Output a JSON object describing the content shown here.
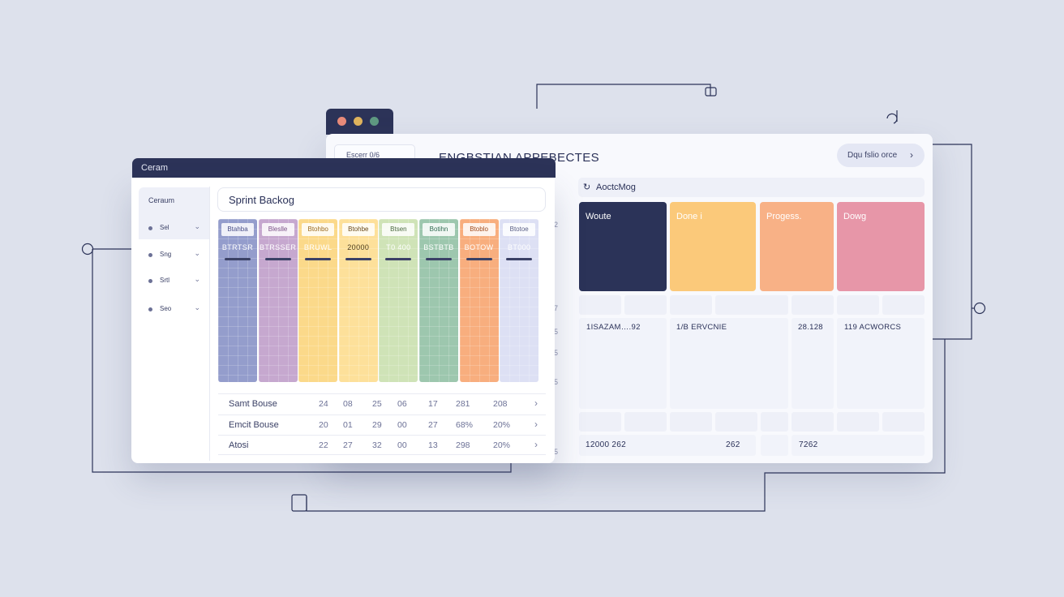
{
  "back_window": {
    "tab_label": "Escerr 0/6",
    "title": "ENGBSTIAN  APPEBECTES",
    "action_label": "Dqu fslio orce",
    "search_label": "AoctcMog",
    "status_cards": [
      {
        "label": "Woute",
        "color": "#2b3358"
      },
      {
        "label": "Done i",
        "color": "#fbc97a"
      },
      {
        "label": "Progess.",
        "color": "#f8b186"
      },
      {
        "label": "Dowg",
        "color": "#e796a8"
      }
    ],
    "row1_cells": [
      "1ISAZAM….92",
      "1/B ERVCNIE",
      "28.128",
      "119 ACWORCS"
    ],
    "row2_cells": [
      "12000 262",
      "262",
      "7262"
    ],
    "side_digits": [
      "2",
      "7",
      "5",
      "5",
      "5",
      "5"
    ]
  },
  "front_window": {
    "title": "Ceram",
    "sidebar": {
      "header": "Ceraum",
      "items": [
        {
          "label": "Sel"
        },
        {
          "label": "Sng"
        },
        {
          "label": "Srtl"
        },
        {
          "label": "Seo"
        }
      ]
    },
    "header_title": "Sprint Backog",
    "columns": [
      {
        "badge": "Btahba",
        "number": "BTRTSR",
        "color": "#949dcc",
        "text_color": "#4a4f88"
      },
      {
        "badge": "Bleslle",
        "number": "BTRSSER",
        "color": "#c6a8cf",
        "text_color": "#7a4f86"
      },
      {
        "badge": "Btohbo",
        "number": "BRUWL",
        "color": "#fbd98a",
        "text_color": "#9a6a1e"
      },
      {
        "badge": "Btohbe",
        "number": "20000",
        "color": "#fde09a",
        "text_color": "#6a4a1a"
      },
      {
        "badge": "Btsen",
        "number": "T0 400",
        "color": "#cfe3b7",
        "text_color": "#4b6a40"
      },
      {
        "badge": "Botihn",
        "number": "BSTBTB",
        "color": "#9dc7ae",
        "text_color": "#2e6a50"
      },
      {
        "badge": "Btoblo",
        "number": "BOTOW",
        "color": "#f8ae7e",
        "text_color": "#a04a1a"
      },
      {
        "badge": "Btotoe",
        "number": "BT000",
        "color": "#dde0f4",
        "text_color": "#5a5f86"
      }
    ],
    "summary_rows": [
      {
        "label": "Samt Bouse",
        "values": [
          "24",
          "08",
          "25",
          "06",
          "17",
          "281",
          "208"
        ]
      },
      {
        "label": "Emcit Bouse",
        "values": [
          "20",
          "01",
          "29",
          "00",
          "27",
          "68%",
          "20%"
        ]
      },
      {
        "label": "Atosi",
        "values": [
          "22",
          "27",
          "32",
          "00",
          "13",
          "298",
          "20%"
        ]
      }
    ]
  }
}
